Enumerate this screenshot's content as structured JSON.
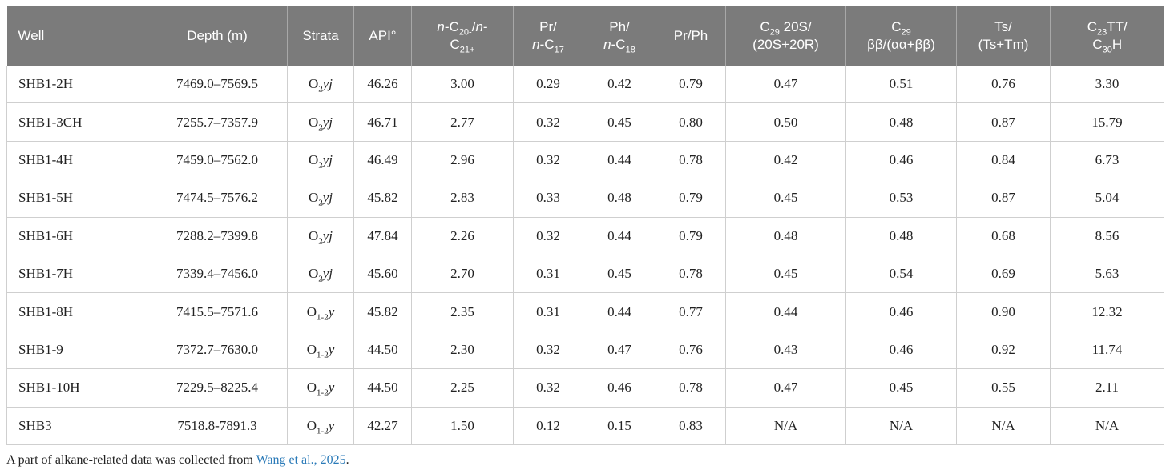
{
  "headers": {
    "well": "Well",
    "depth": "Depth (m)",
    "strata": "Strata",
    "api": "API°",
    "nc_a": "n",
    "nc_b": "-C",
    "nc_c": "20-",
    "nc_d": "/",
    "nc_e": "n",
    "nc_f": "-",
    "nc_g": "C",
    "nc_h": "21+",
    "prc_a": "Pr/",
    "prc_b": "n",
    "prc_c": "-C",
    "prc_d": "17",
    "phc_a": "Ph/",
    "phc_b": "n",
    "phc_c": "-C",
    "phc_d": "18",
    "prph": "Pr/Ph",
    "c29s_a": "C",
    "c29s_b": "29",
    "c29s_c": " 20S/",
    "c29s_d": "(20S+20R)",
    "c29bb_a": "C",
    "c29bb_b": "29",
    "c29bb_c": "ββ/(αα+ββ)",
    "ts_a": "Ts/",
    "ts_b": "(Ts+Tm)",
    "ctt_a": "C",
    "ctt_b": "23",
    "ctt_c": "TT/",
    "ctt_d": "C",
    "ctt_e": "30",
    "ctt_f": "H"
  },
  "rows": [
    {
      "well": "SHB1-2H",
      "depth": "7469.0–7569.5",
      "strata_a": "O",
      "strata_sub": "2",
      "strata_it": "yj",
      "api": "46.26",
      "nc": "3.00",
      "prc": "0.29",
      "phc": "0.42",
      "prph": "0.79",
      "c29s": "0.47",
      "c29bb": "0.51",
      "ts": "0.76",
      "ctt": "3.30"
    },
    {
      "well": "SHB1-3CH",
      "depth": "7255.7–7357.9",
      "strata_a": "O",
      "strata_sub": "2",
      "strata_it": "yj",
      "api": "46.71",
      "nc": "2.77",
      "prc": "0.32",
      "phc": "0.45",
      "prph": "0.80",
      "c29s": "0.50",
      "c29bb": "0.48",
      "ts": "0.87",
      "ctt": "15.79"
    },
    {
      "well": "SHB1-4H",
      "depth": "7459.0–7562.0",
      "strata_a": "O",
      "strata_sub": "2",
      "strata_it": "yj",
      "api": "46.49",
      "nc": "2.96",
      "prc": "0.32",
      "phc": "0.44",
      "prph": "0.78",
      "c29s": "0.42",
      "c29bb": "0.46",
      "ts": "0.84",
      "ctt": "6.73"
    },
    {
      "well": "SHB1-5H",
      "depth": "7474.5–7576.2",
      "strata_a": "O",
      "strata_sub": "2",
      "strata_it": "yj",
      "api": "45.82",
      "nc": "2.83",
      "prc": "0.33",
      "phc": "0.48",
      "prph": "0.79",
      "c29s": "0.45",
      "c29bb": "0.53",
      "ts": "0.87",
      "ctt": "5.04"
    },
    {
      "well": "SHB1-6H",
      "depth": "7288.2–7399.8",
      "strata_a": "O",
      "strata_sub": "2",
      "strata_it": "yj",
      "api": "47.84",
      "nc": "2.26",
      "prc": "0.32",
      "phc": "0.44",
      "prph": "0.79",
      "c29s": "0.48",
      "c29bb": "0.48",
      "ts": "0.68",
      "ctt": "8.56"
    },
    {
      "well": "SHB1-7H",
      "depth": "7339.4–7456.0",
      "strata_a": "O",
      "strata_sub": "2",
      "strata_it": "yj",
      "api": "45.60",
      "nc": "2.70",
      "prc": "0.31",
      "phc": "0.45",
      "prph": "0.78",
      "c29s": "0.45",
      "c29bb": "0.54",
      "ts": "0.69",
      "ctt": "5.63"
    },
    {
      "well": "SHB1-8H",
      "depth": "7415.5–7571.6",
      "strata_a": "O",
      "strata_sub": "1-2",
      "strata_it": "y",
      "api": "45.82",
      "nc": "2.35",
      "prc": "0.31",
      "phc": "0.44",
      "prph": "0.77",
      "c29s": "0.44",
      "c29bb": "0.46",
      "ts": "0.90",
      "ctt": "12.32"
    },
    {
      "well": "SHB1-9",
      "depth": "7372.7–7630.0",
      "strata_a": "O",
      "strata_sub": "1-2",
      "strata_it": "y",
      "api": "44.50",
      "nc": "2.30",
      "prc": "0.32",
      "phc": "0.47",
      "prph": "0.76",
      "c29s": "0.43",
      "c29bb": "0.46",
      "ts": "0.92",
      "ctt": "11.74"
    },
    {
      "well": "SHB1-10H",
      "depth": "7229.5–8225.4",
      "strata_a": "O",
      "strata_sub": "1-2",
      "strata_it": "y",
      "api": "44.50",
      "nc": "2.25",
      "prc": "0.32",
      "phc": "0.46",
      "prph": "0.78",
      "c29s": "0.47",
      "c29bb": "0.45",
      "ts": "0.55",
      "ctt": "2.11"
    },
    {
      "well": "SHB3",
      "depth": "7518.8-7891.3",
      "strata_a": "O",
      "strata_sub": "1-2",
      "strata_it": "y",
      "api": "42.27",
      "nc": "1.50",
      "prc": "0.12",
      "phc": "0.15",
      "prph": "0.83",
      "c29s": "N/A",
      "c29bb": "N/A",
      "ts": "N/A",
      "ctt": "N/A"
    }
  ],
  "footnote": {
    "text": "A part of alkane-related data was collected from ",
    "link": "Wang et al., 2025",
    "end": "."
  }
}
